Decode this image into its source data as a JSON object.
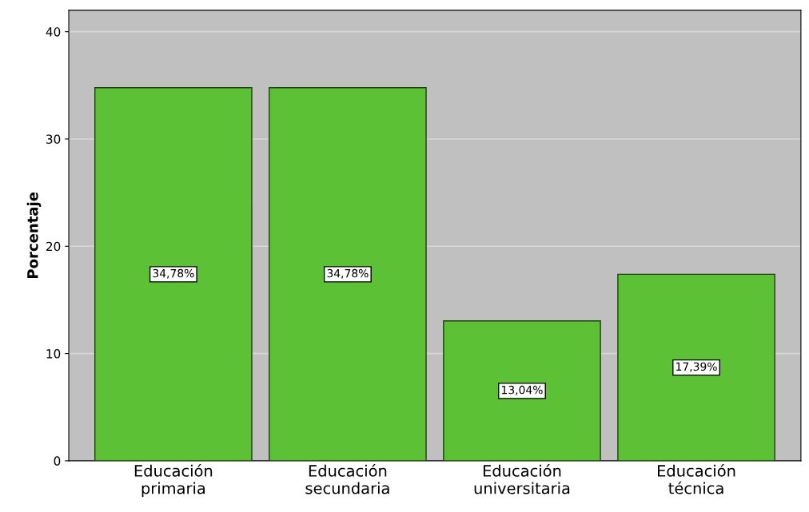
{
  "chart_data": {
    "type": "bar",
    "ylabel": "Porcentaje",
    "categories": [
      "Educación\nprimaria",
      "Educación\nsecundaria",
      "Educación\nuniversitaria",
      "Educación\ntécnica"
    ],
    "values": [
      34.78,
      34.78,
      13.04,
      17.39
    ],
    "value_labels": [
      "34,78%",
      "34,78%",
      "13,04%",
      "17,39%"
    ],
    "color": "#5dc136",
    "ylim": [
      0,
      42
    ],
    "yticks": [
      0,
      10,
      20,
      30,
      40
    ],
    "grid": "y"
  }
}
